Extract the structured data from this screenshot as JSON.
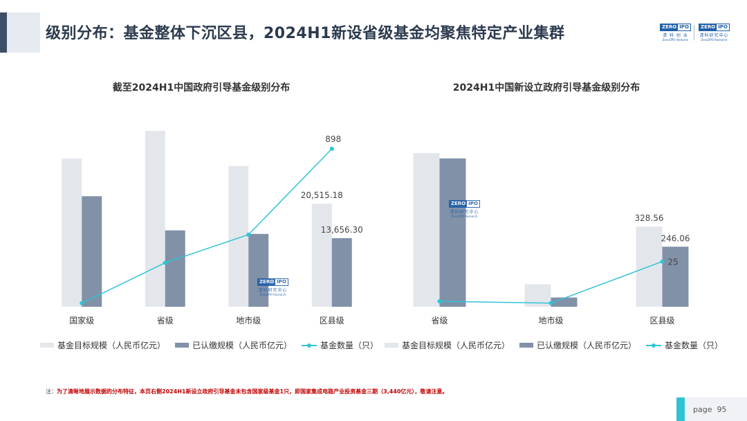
{
  "page": {
    "title": "级别分布：基金整体下沉区县，2024H1新设省级基金均聚焦特定产业集群",
    "footnote_prefix": "注：",
    "footnote_text": "为了清晰地展示数据的分布特征，本页右侧2024H1新设立政府引导基金未包含国家级基金1只，即国家集成电路产业投资基金三期（3,440亿元），敬请注意。",
    "page_label": "page",
    "page_number": "95"
  },
  "logo": {
    "zero": "ZERO",
    "ipo": "IPO",
    "cn_left": "清 科 创 业",
    "en_left": "Zero2IPO Ventures",
    "cn_right": "清科研究中心",
    "en_right": "Zero2IPO Research"
  },
  "colors": {
    "target_bar": "#e3e7ec",
    "paid_bar": "#8191a8",
    "count_line": "#2ec4d6"
  },
  "legend": {
    "target": "基金目标规模（人民币亿元）",
    "paid": "已认缴规模（人民币亿元）",
    "count": "基金数量（只）"
  },
  "chart_data": [
    {
      "type": "bar",
      "title": "截至2024H1中国政府引导基金级别分布",
      "categories": [
        "国家级",
        "省级",
        "地市级",
        "区县级"
      ],
      "series": [
        {
          "name": "基金目标规模（人民币亿元）",
          "values": [
            29500,
            35000,
            28000,
            20515.18
          ]
        },
        {
          "name": "已认缴规模（人民币亿元）",
          "values": [
            22000,
            15200,
            14500,
            13656.3
          ]
        },
        {
          "name": "基金数量（只）",
          "values": [
            20,
            250,
            410,
            898
          ]
        }
      ],
      "data_labels": {
        "target_last": "20,515.18",
        "paid_last": "13,656.30",
        "count_last": "898"
      },
      "ylim": [
        0,
        35000
      ],
      "y2lim": [
        0,
        1000
      ],
      "grid": false,
      "legend_position": "bottom"
    },
    {
      "type": "bar",
      "title": "2024H1中国新设立政府引导基金级别分布",
      "categories": [
        "省级",
        "地市级",
        "区县级"
      ],
      "series": [
        {
          "name": "基金目标规模（人民币亿元）",
          "values": [
            630,
            92,
            328.56
          ]
        },
        {
          "name": "已认缴规模（人民币亿元）",
          "values": [
            608,
            38,
            246.06
          ]
        },
        {
          "name": "基金数量（只）",
          "values": [
            3,
            2,
            25
          ]
        }
      ],
      "data_labels": {
        "target_last": "328.56",
        "paid_last": "246.06",
        "count_last": "25"
      },
      "ylim": [
        0,
        630
      ],
      "y2lim": [
        0,
        85
      ],
      "grid": false,
      "legend_position": "bottom"
    }
  ]
}
